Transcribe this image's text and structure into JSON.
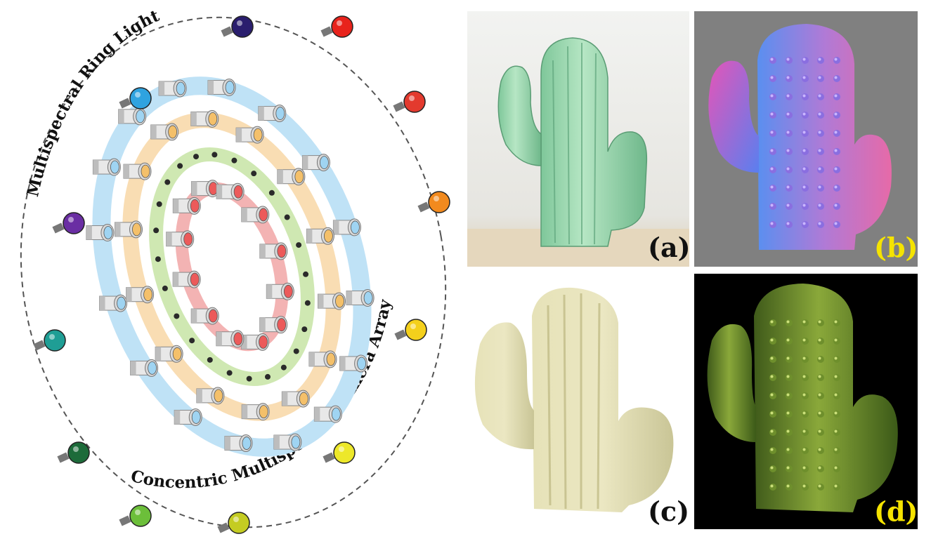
{
  "diagram": {
    "ring_light_label": "Multispectral Ring Light",
    "camera_array_label": "Concentric Multispectral Camera Array",
    "bulb_colors": [
      "#2a1e6e",
      "#e8231c",
      "#e33a2e",
      "#f28a1e",
      "#f4d01c",
      "#ede82a",
      "#c4cc22",
      "#6cbf3a",
      "#1d6b3a",
      "#1f9e95",
      "#6a2ea3",
      "#2fa3e0"
    ],
    "ring_colors": {
      "outer": "#bfe2f6",
      "second": "#f9ddb3",
      "third": "#cfe8b2",
      "inner": "#f3b3b3"
    },
    "lens_colors": {
      "outer": "#9fd4f2",
      "second": "#f4c06a",
      "third": "#cfe39a",
      "inner": "#ec5a5a"
    }
  },
  "panels": [
    {
      "id": "a",
      "label": "(a)",
      "label_color": "#111111"
    },
    {
      "id": "b",
      "label": "(b)",
      "label_color": "#f5e300"
    },
    {
      "id": "c",
      "label": "(c)",
      "label_color": "#111111"
    },
    {
      "id": "d",
      "label": "(d)",
      "label_color": "#f5e300"
    }
  ]
}
